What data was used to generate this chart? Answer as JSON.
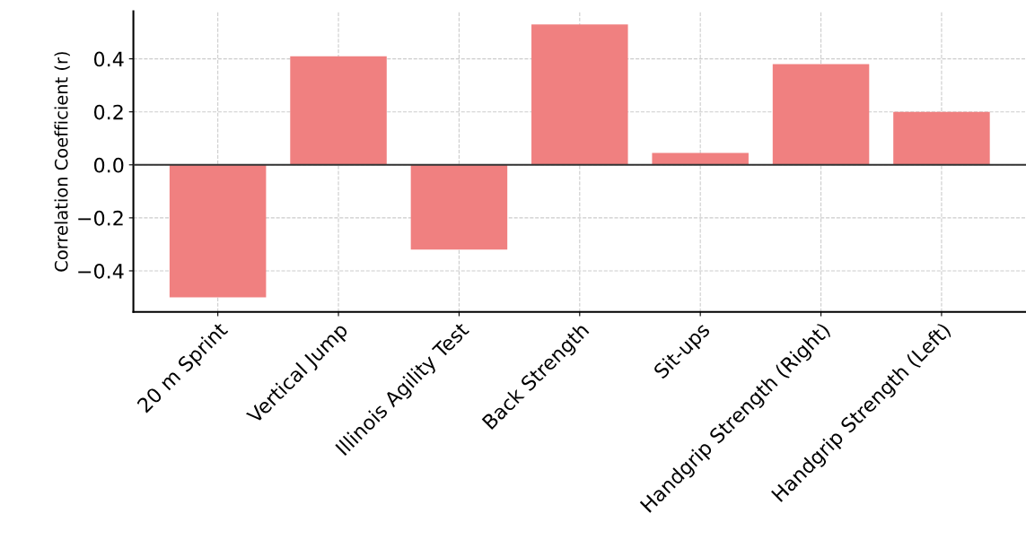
{
  "chart_data": {
    "type": "bar",
    "ylabel": "Correlation Coefficient (r)",
    "categories": [
      "20 m Sprint",
      "Vertical Jump",
      "Illinois Agility Test",
      "Back Strength",
      "Sit-ups",
      "Handgrip Strength (Right)",
      "Handgrip Strength (Left)"
    ],
    "values": [
      -0.5,
      0.41,
      -0.32,
      0.53,
      0.045,
      0.38,
      0.2
    ],
    "color": "#f08080",
    "ylim": [
      -0.555,
      0.58
    ],
    "yticks": [
      {
        "value": -0.4,
        "label": "−0.4"
      },
      {
        "value": -0.2,
        "label": "−0.2"
      },
      {
        "value": 0.0,
        "label": "0.0"
      },
      {
        "value": 0.2,
        "label": "0.2"
      },
      {
        "value": 0.4,
        "label": "0.4"
      }
    ],
    "ref_lines": [
      {
        "axis": "y",
        "value": 0,
        "label": null,
        "color": "#333333",
        "line_style": "solid"
      }
    ],
    "grid": true,
    "legend": false
  }
}
